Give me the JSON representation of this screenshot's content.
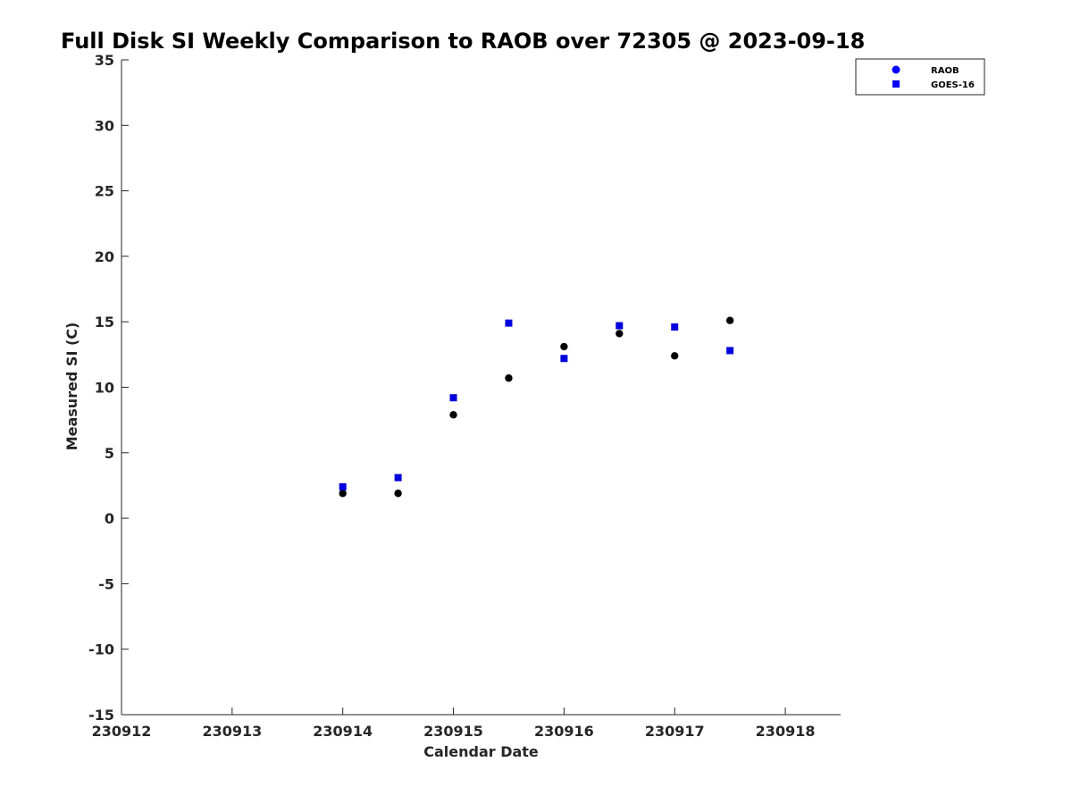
{
  "chart_data": {
    "type": "scatter",
    "title": "Full Disk SI Weekly Comparison to RAOB over 72305 @ 2023-09-18",
    "xlabel": "Calendar Date",
    "ylabel": "Measured SI (C)",
    "xlim": [
      230912,
      230918.5
    ],
    "ylim": [
      -15,
      35
    ],
    "xticks": [
      230912,
      230913,
      230914,
      230915,
      230916,
      230917,
      230918
    ],
    "xtick_labels": [
      "230912",
      "230913",
      "230914",
      "230915",
      "230916",
      "230917",
      "230918"
    ],
    "yticks": [
      -15,
      -10,
      -5,
      0,
      5,
      10,
      15,
      20,
      25,
      30,
      35
    ],
    "ytick_labels": [
      "-15",
      "-10",
      "-5",
      "0",
      "5",
      "10",
      "15",
      "20",
      "25",
      "30",
      "35"
    ],
    "grid": false,
    "legend_position": "top-right",
    "series": [
      {
        "name": "RAOB",
        "marker": "circle",
        "color": "#000000",
        "legend_color": "#0000ff",
        "x": [
          230914,
          230914.5,
          230915,
          230915.5,
          230916,
          230916.5,
          230917,
          230917.5
        ],
        "y": [
          1.9,
          1.9,
          7.9,
          10.7,
          13.1,
          14.1,
          12.4,
          15.1
        ]
      },
      {
        "name": "GOES-16",
        "marker": "square",
        "color": "#0000dd",
        "legend_color": "#0000ff",
        "x": [
          230914,
          230914.5,
          230915,
          230915.5,
          230916,
          230916.5,
          230917,
          230917.5
        ],
        "y": [
          2.4,
          3.1,
          9.2,
          14.9,
          12.2,
          14.7,
          14.6,
          12.8
        ]
      }
    ]
  }
}
